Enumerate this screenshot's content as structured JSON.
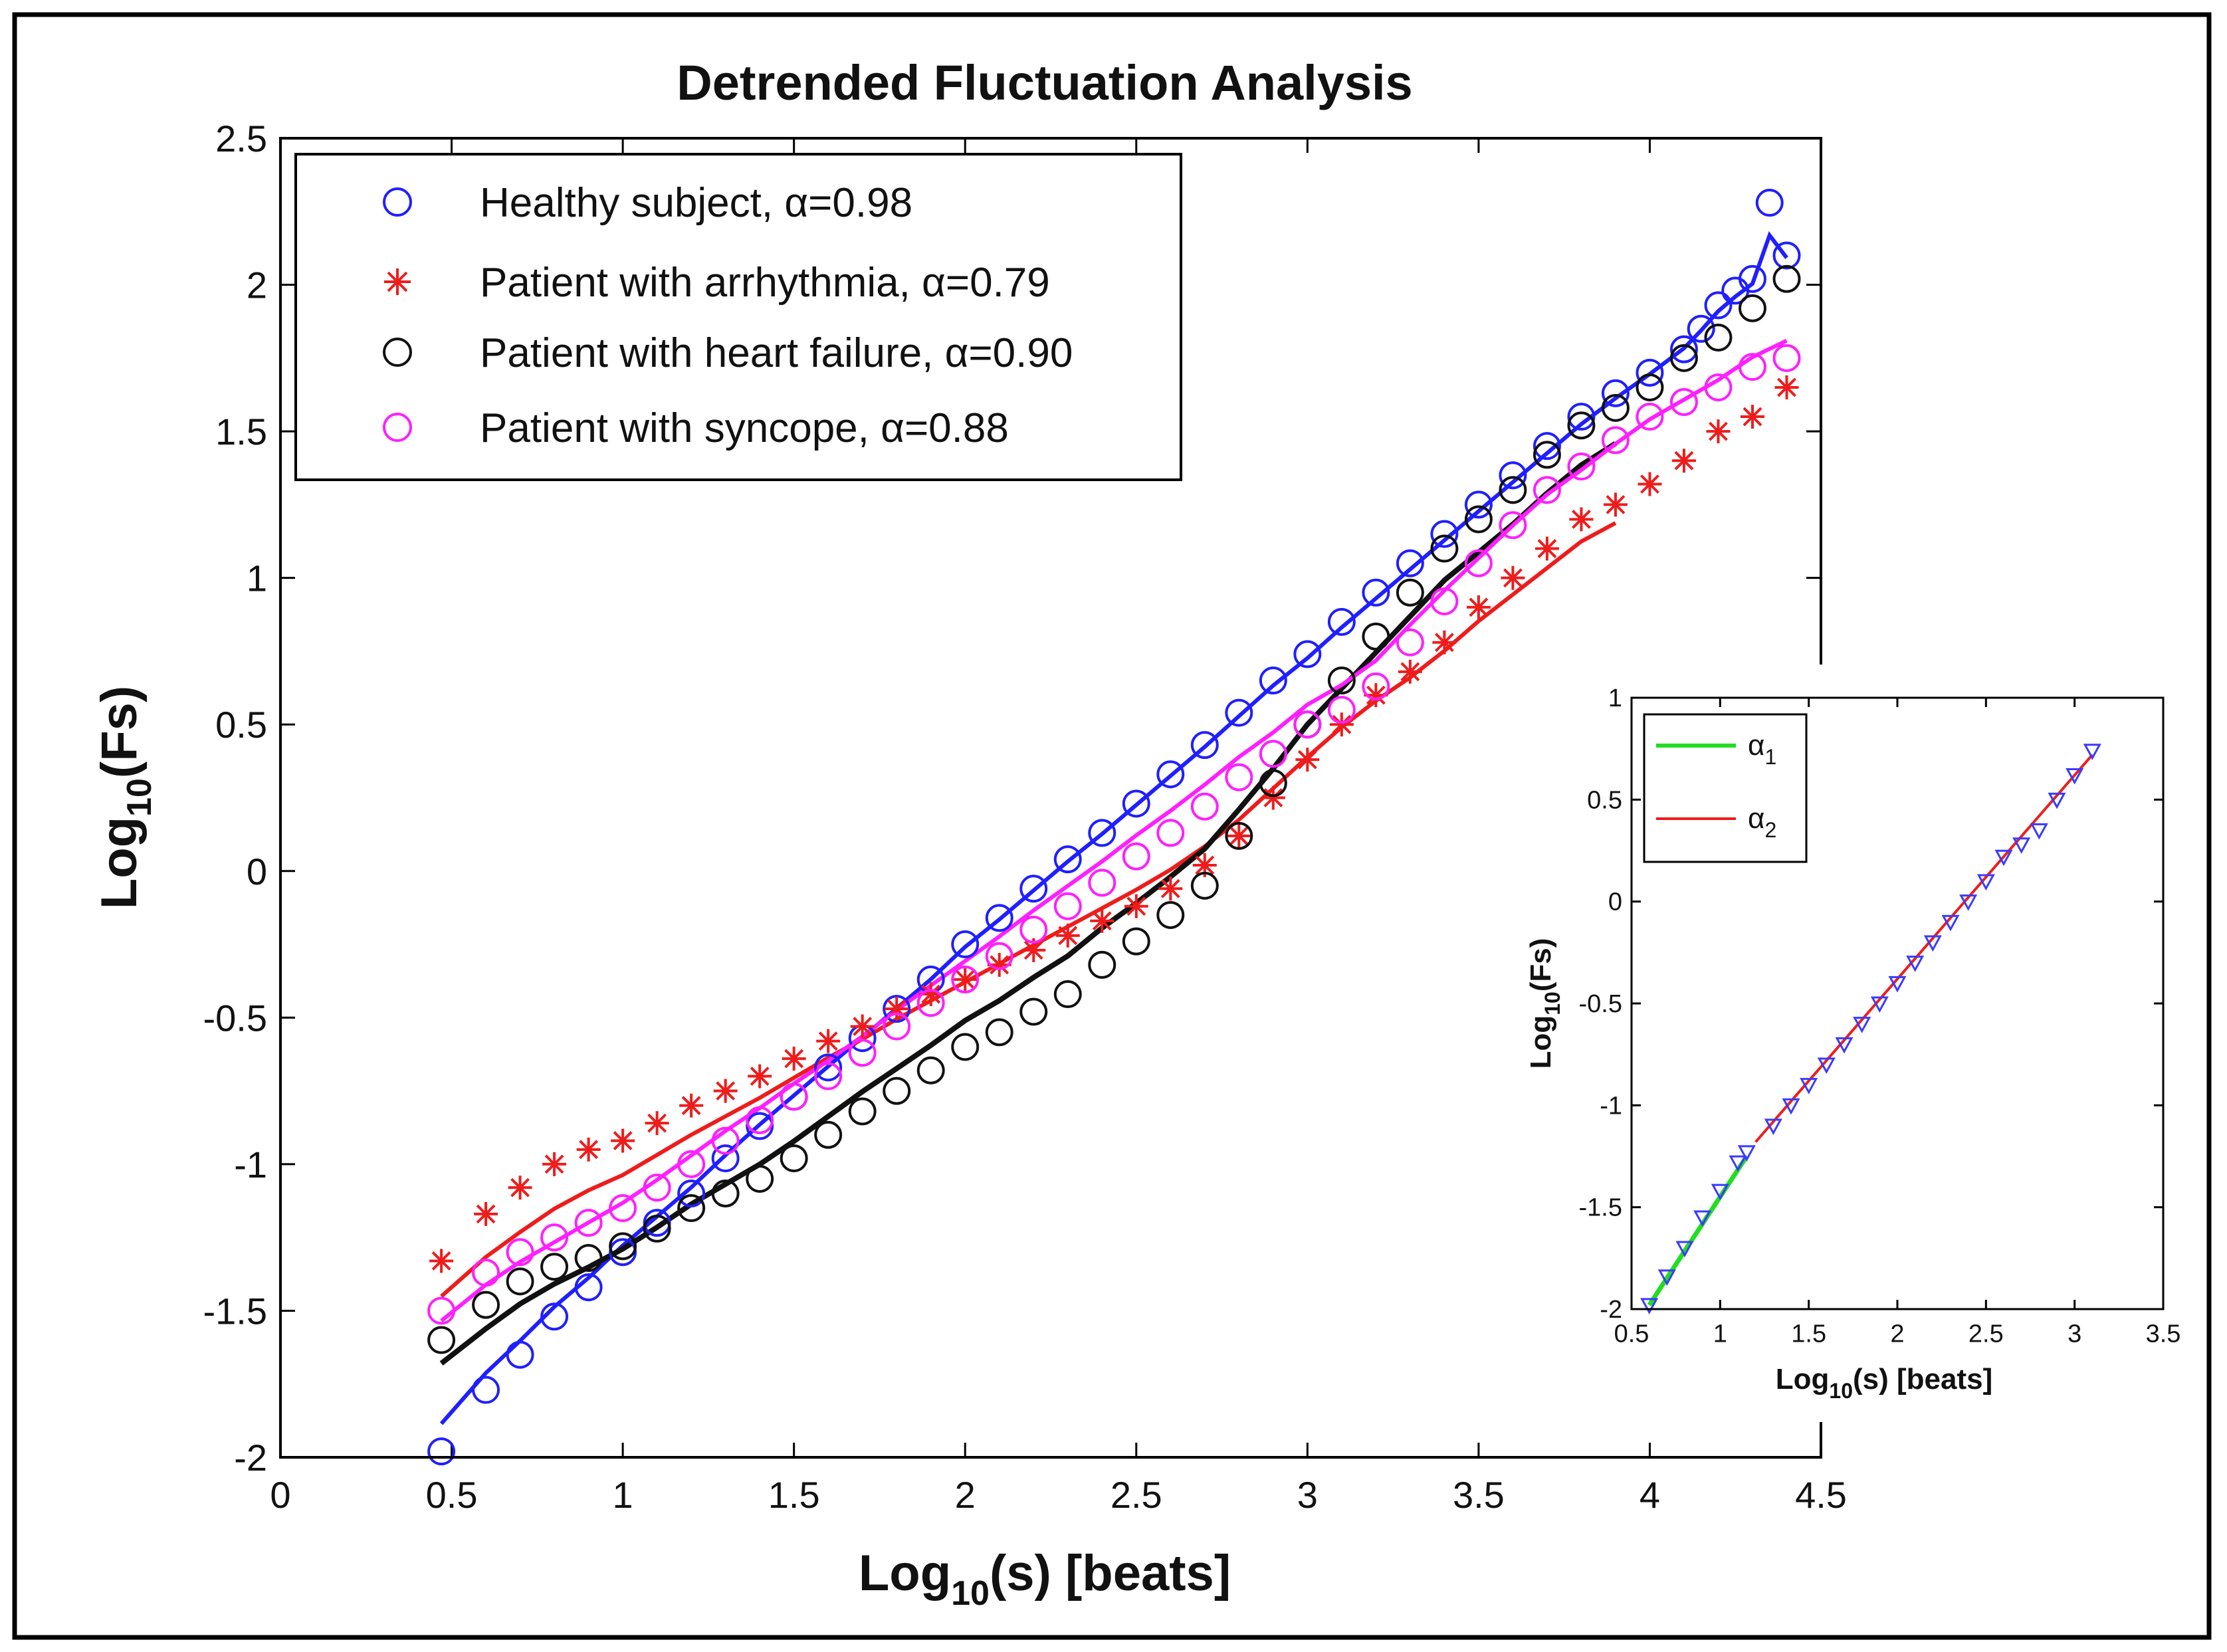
{
  "chart_data": [
    {
      "type": "scatter",
      "title": "Detrended Fluctuation Analysis",
      "xlabel": {
        "base": "Log",
        "sub": "10",
        "rest": "(s) [beats]"
      },
      "ylabel": {
        "base": "Log",
        "sub": "10",
        "rest": "(Fs)"
      },
      "xlim": [
        0,
        4.5
      ],
      "ylim": [
        -2,
        2.5
      ],
      "xticks": [
        "0",
        "0.5",
        "1",
        "1.5",
        "2",
        "2.5",
        "3",
        "3.5",
        "4",
        "4.5"
      ],
      "yticks": [
        "-2",
        "-1.5",
        "-1",
        "-0.5",
        "0",
        "0.5",
        "1",
        "1.5",
        "2",
        "2.5"
      ],
      "legend_position": "top-left",
      "series": [
        {
          "name": "Healthy subject",
          "alpha_label": "Healthy subject, α=0.98",
          "color": "#1f1fff",
          "marker": "circle",
          "x": [
            0.47,
            0.6,
            0.7,
            0.8,
            0.9,
            1.0,
            1.1,
            1.2,
            1.3,
            1.4,
            1.5,
            1.6,
            1.7,
            1.8,
            1.9,
            2.0,
            2.1,
            2.2,
            2.3,
            2.4,
            2.5,
            2.6,
            2.7,
            2.8,
            2.9,
            3.0,
            3.1,
            3.2,
            3.3,
            3.4,
            3.5,
            3.6,
            3.7,
            3.8,
            3.9,
            4.0,
            4.1,
            4.15,
            4.2,
            4.25,
            4.3,
            4.35,
            4.4
          ],
          "y": [
            -1.98,
            -1.77,
            -1.65,
            -1.52,
            -1.42,
            -1.3,
            -1.2,
            -1.1,
            -0.98,
            -0.87,
            -0.77,
            -0.67,
            -0.57,
            -0.47,
            -0.37,
            -0.25,
            -0.16,
            -0.06,
            0.04,
            0.13,
            0.23,
            0.33,
            0.43,
            0.54,
            0.65,
            0.74,
            0.85,
            0.95,
            1.05,
            1.15,
            1.25,
            1.35,
            1.45,
            1.55,
            1.63,
            1.7,
            1.78,
            1.85,
            1.93,
            1.98,
            2.02,
            2.28,
            2.1
          ],
          "fit": {
            "slope": 0.98,
            "intercept": -2.23,
            "x_range": [
              0.47,
              4.4
            ]
          }
        },
        {
          "name": "Patient with arrhythmia",
          "alpha_label": "Patient with arrhythmia, α=0.79",
          "color": "#ee1c1c",
          "marker": "star",
          "x": [
            0.47,
            0.6,
            0.7,
            0.8,
            0.9,
            1.0,
            1.1,
            1.2,
            1.3,
            1.4,
            1.5,
            1.6,
            1.7,
            1.8,
            1.9,
            2.0,
            2.1,
            2.2,
            2.3,
            2.4,
            2.5,
            2.6,
            2.7,
            2.8,
            2.9,
            3.0,
            3.1,
            3.2,
            3.3,
            3.4,
            3.5,
            3.6,
            3.7,
            3.8,
            3.9,
            4.0,
            4.1,
            4.2,
            4.3,
            4.4
          ],
          "y": [
            -1.33,
            -1.17,
            -1.08,
            -1.0,
            -0.95,
            -0.92,
            -0.86,
            -0.8,
            -0.75,
            -0.7,
            -0.64,
            -0.58,
            -0.53,
            -0.47,
            -0.42,
            -0.37,
            -0.32,
            -0.27,
            -0.22,
            -0.17,
            -0.12,
            -0.06,
            0.02,
            0.12,
            0.25,
            0.38,
            0.5,
            0.6,
            0.68,
            0.78,
            0.9,
            1.0,
            1.1,
            1.2,
            1.25,
            1.32,
            1.4,
            1.5,
            1.55,
            1.65
          ],
          "fit": {
            "slope": 0.79,
            "intercept": -1.97,
            "x_range": [
              0.47,
              3.9
            ]
          }
        },
        {
          "name": "Patient with heart failure",
          "alpha_label": "Patient with heart failure, α=0.90",
          "color": "#111111",
          "marker": "circle",
          "x": [
            0.47,
            0.6,
            0.7,
            0.8,
            0.9,
            1.0,
            1.1,
            1.2,
            1.3,
            1.4,
            1.5,
            1.6,
            1.7,
            1.8,
            1.9,
            2.0,
            2.1,
            2.2,
            2.3,
            2.4,
            2.5,
            2.6,
            2.7,
            2.8,
            2.9,
            3.0,
            3.1,
            3.2,
            3.3,
            3.4,
            3.5,
            3.6,
            3.7,
            3.8,
            3.9,
            4.0,
            4.1,
            4.2,
            4.3,
            4.4
          ],
          "y": [
            -1.6,
            -1.48,
            -1.4,
            -1.35,
            -1.32,
            -1.28,
            -1.22,
            -1.15,
            -1.1,
            -1.05,
            -0.98,
            -0.9,
            -0.82,
            -0.75,
            -0.68,
            -0.6,
            -0.55,
            -0.48,
            -0.42,
            -0.32,
            -0.24,
            -0.15,
            -0.05,
            0.12,
            0.3,
            0.5,
            0.65,
            0.8,
            0.95,
            1.1,
            1.2,
            1.3,
            1.42,
            1.52,
            1.58,
            1.65,
            1.75,
            1.82,
            1.92,
            2.02
          ],
          "fit": {
            "slope": 0.9,
            "intercept": -2.2,
            "x_range": [
              0.47,
              3.9
            ]
          }
        },
        {
          "name": "Patient with syncope",
          "alpha_label": "Patient with syncope, α=0.88",
          "color": "#ff1fff",
          "marker": "circle",
          "x": [
            0.47,
            0.6,
            0.7,
            0.8,
            0.9,
            1.0,
            1.1,
            1.2,
            1.3,
            1.4,
            1.5,
            1.6,
            1.7,
            1.8,
            1.9,
            2.0,
            2.1,
            2.2,
            2.3,
            2.4,
            2.5,
            2.6,
            2.7,
            2.8,
            2.9,
            3.0,
            3.1,
            3.2,
            3.3,
            3.4,
            3.5,
            3.6,
            3.7,
            3.8,
            3.9,
            4.0,
            4.1,
            4.2,
            4.3,
            4.4
          ],
          "y": [
            -1.5,
            -1.37,
            -1.3,
            -1.25,
            -1.2,
            -1.15,
            -1.08,
            -1.0,
            -0.92,
            -0.85,
            -0.77,
            -0.7,
            -0.62,
            -0.53,
            -0.45,
            -0.37,
            -0.29,
            -0.2,
            -0.12,
            -0.04,
            0.05,
            0.13,
            0.22,
            0.32,
            0.4,
            0.5,
            0.55,
            0.63,
            0.78,
            0.92,
            1.05,
            1.18,
            1.3,
            1.38,
            1.47,
            1.55,
            1.6,
            1.65,
            1.72,
            1.75
          ],
          "fit": {
            "slope": 0.88,
            "intercept": -1.99,
            "x_range": [
              0.47,
              4.4
            ]
          }
        }
      ]
    },
    {
      "type": "scatter",
      "title": "",
      "xlabel": {
        "base": "Log",
        "sub": "10",
        "rest": "(s) [beats]"
      },
      "ylabel": {
        "base": "Log",
        "sub": "10",
        "rest": "(Fs)"
      },
      "xlim": [
        0.5,
        3.5
      ],
      "ylim": [
        -2,
        1
      ],
      "xticks": [
        "0.5",
        "1",
        "1.5",
        "2",
        "2.5",
        "3",
        "3.5"
      ],
      "yticks": [
        "-2",
        "-1.5",
        "-1",
        "-0.5",
        "0",
        "0.5",
        "1"
      ],
      "legend_position": "top-left",
      "legend": [
        {
          "base": "α",
          "sub": "1",
          "color": "#22dd22"
        },
        {
          "base": "α",
          "sub": "2",
          "color": "#ee1c1c"
        }
      ],
      "points": {
        "color": "#3a3aff",
        "marker": "triangle-down",
        "x": [
          0.6,
          0.7,
          0.8,
          0.9,
          1.0,
          1.1,
          1.15,
          1.3,
          1.4,
          1.5,
          1.6,
          1.7,
          1.8,
          1.9,
          2.0,
          2.1,
          2.2,
          2.3,
          2.4,
          2.5,
          2.6,
          2.7,
          2.8,
          2.9,
          3.0,
          3.1
        ],
        "y": [
          -1.98,
          -1.84,
          -1.7,
          -1.55,
          -1.42,
          -1.28,
          -1.23,
          -1.1,
          -1.0,
          -0.9,
          -0.8,
          -0.7,
          -0.6,
          -0.5,
          -0.4,
          -0.3,
          -0.2,
          -0.1,
          0.0,
          0.1,
          0.22,
          0.28,
          0.35,
          0.5,
          0.62,
          0.74
        ]
      },
      "fits": [
        {
          "name": "α1",
          "color": "#22dd22",
          "x_range": [
            0.6,
            1.15
          ],
          "y_range": [
            -1.98,
            -1.25
          ]
        },
        {
          "name": "α2",
          "color": "#ee1c1c",
          "x_range": [
            1.2,
            3.1
          ],
          "y_range": [
            -1.18,
            0.72
          ]
        }
      ]
    }
  ]
}
